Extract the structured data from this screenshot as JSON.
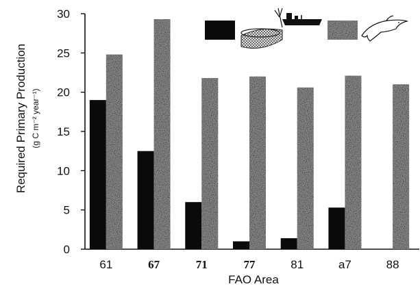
{
  "chart_data": {
    "type": "bar",
    "xlabel": "FAO Area",
    "ylabel": "Required Primary Production",
    "ylabel_units": "(g C m⁻² year⁻¹)",
    "ylim": [
      0,
      30
    ],
    "yticks": [
      "0",
      "5",
      "10",
      "15",
      "20",
      "25",
      "30"
    ],
    "categories": [
      "61",
      "67",
      "71",
      "77",
      "81",
      "a7",
      "88"
    ],
    "category_styles": [
      "normal",
      "bold",
      "bold",
      "bold",
      "normal",
      "normal",
      "normal"
    ],
    "series": [
      {
        "name": "",
        "legend_icon": "fishing-vessel-net-icon",
        "fill": "solid-black",
        "values": [
          19,
          12.5,
          6,
          1,
          1.4,
          5.3,
          0
        ]
      },
      {
        "name": "",
        "legend_icon": "dolphin-icon",
        "fill": "stippled-gray",
        "values": [
          24.8,
          29.3,
          21.8,
          22,
          20.6,
          22.1,
          21
        ]
      }
    ],
    "grid": false,
    "legend_position": "top-right",
    "colors": {
      "series1": "#0a0a0a",
      "series2": "#8a8a8a"
    }
  }
}
